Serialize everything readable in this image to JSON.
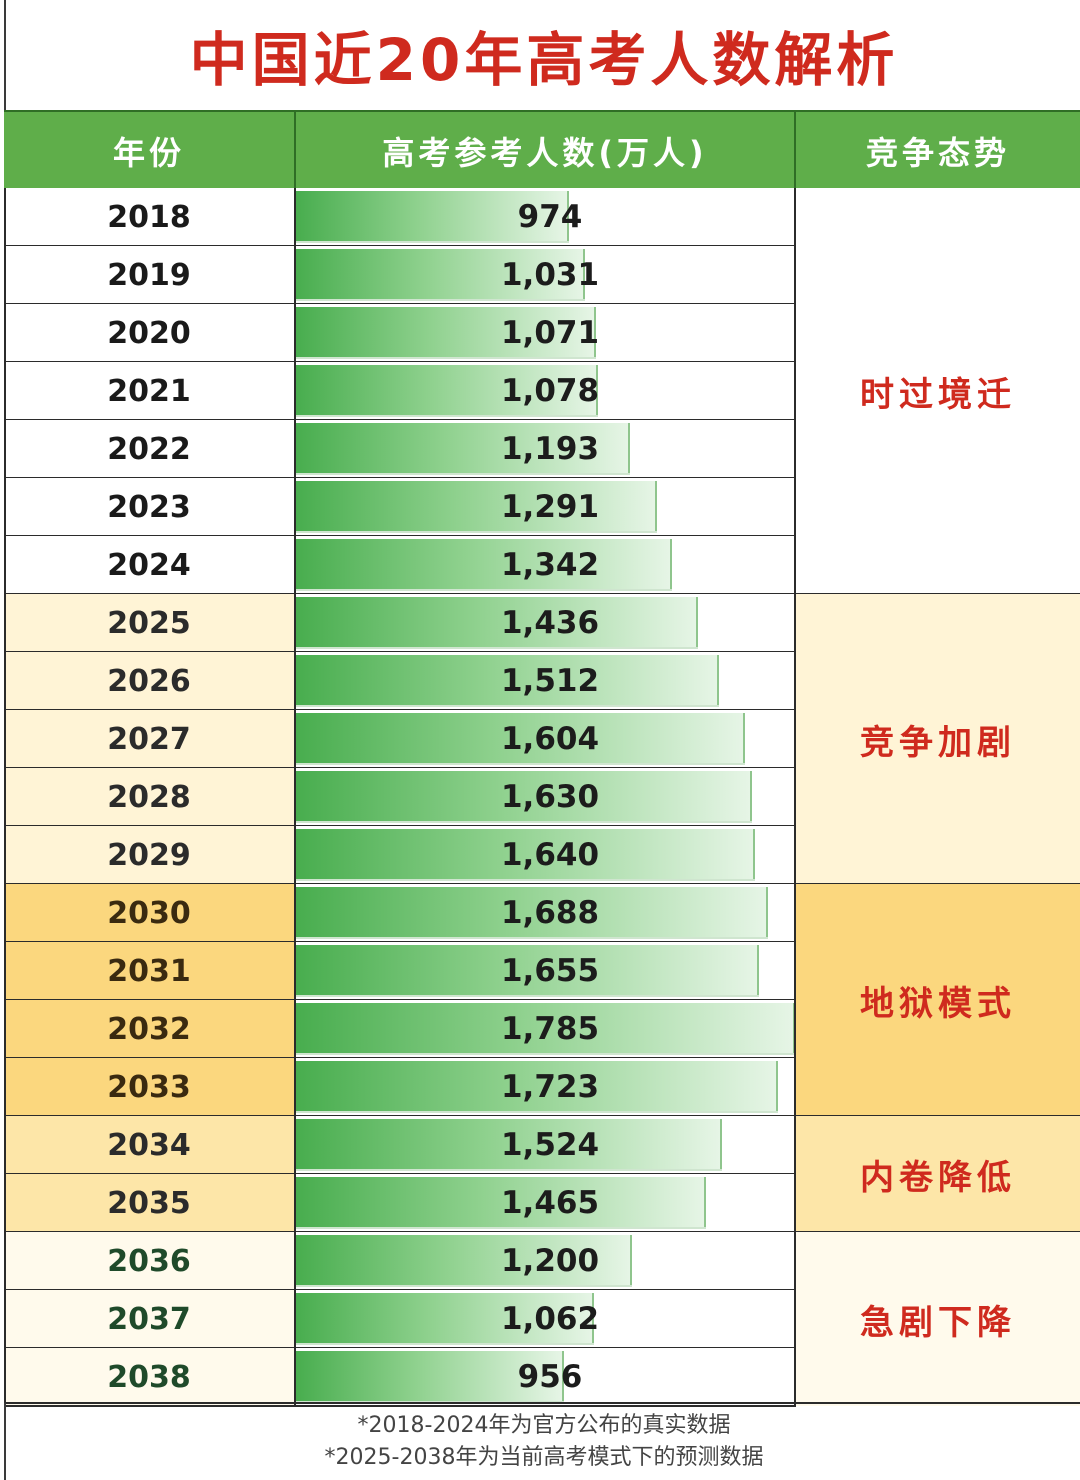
{
  "title": "中国近20年高考人数解析",
  "headers": {
    "year": "年份",
    "count": "高考参考人数(万人)",
    "status": "竞争态势"
  },
  "colors": {
    "header_green": "#5fae4a",
    "title_red": "#cf2a1e",
    "bar_green": "#48ad4e"
  },
  "chart_data": {
    "type": "bar",
    "orientation": "horizontal",
    "title": "中国近20年高考人数解析",
    "ylabel": "高考参考人数(万人)",
    "xlabel": "年份",
    "categories": [
      "2018",
      "2019",
      "2020",
      "2021",
      "2022",
      "2023",
      "2024",
      "2025",
      "2026",
      "2027",
      "2028",
      "2029",
      "2030",
      "2031",
      "2032",
      "2033",
      "2034",
      "2035",
      "2036",
      "2037",
      "2038"
    ],
    "values": [
      974,
      1031,
      1071,
      1078,
      1193,
      1291,
      1342,
      1436,
      1512,
      1604,
      1630,
      1640,
      1688,
      1655,
      1785,
      1723,
      1524,
      1465,
      1200,
      1062,
      956
    ],
    "value_labels": [
      "974",
      "1,031",
      "1,071",
      "1,078",
      "1,193",
      "1,291",
      "1,342",
      "1,436",
      "1,512",
      "1,604",
      "1,630",
      "1,640",
      "1,688",
      "1,655",
      "1,785",
      "1,723",
      "1,524",
      "1,465",
      "1,200",
      "1,062",
      "956"
    ],
    "row_backgrounds": [
      "#ffffff",
      "#ffffff",
      "#ffffff",
      "#ffffff",
      "#ffffff",
      "#ffffff",
      "#ffffff",
      "#fff4d6",
      "#fff4d6",
      "#fff4d6",
      "#fff4d6",
      "#fff4d6",
      "#fbd77e",
      "#fbd77e",
      "#fbd77e",
      "#fbd77e",
      "#fde6a8",
      "#fde6a8",
      "#fffaec",
      "#fffaec",
      "#fffaec"
    ],
    "year_colors": [
      "#1a1a1a",
      "#1a1a1a",
      "#1a1a1a",
      "#1a1a1a",
      "#1a1a1a",
      "#1a1a1a",
      "#1a1a1a",
      "#2b2b2b",
      "#2b2b2b",
      "#2b2b2b",
      "#2b2b2b",
      "#2b2b2b",
      "#3a2a10",
      "#3a2a10",
      "#3a2a10",
      "#3a2a10",
      "#2b2b2b",
      "#2b2b2b",
      "#1f4a2a",
      "#1f4a2a",
      "#1f4a2a"
    ],
    "groups": [
      {
        "label": "时过境迁",
        "start": 0,
        "end": 6,
        "bg": "#ffffff"
      },
      {
        "label": "竞争加剧",
        "start": 7,
        "end": 11,
        "bg": "#fff4d6"
      },
      {
        "label": "地狱模式",
        "start": 12,
        "end": 15,
        "bg": "#fbd77e"
      },
      {
        "label": "内卷降低",
        "start": 16,
        "end": 17,
        "bg": "#fde6a8"
      },
      {
        "label": "急剧下降",
        "start": 18,
        "end": 20,
        "bg": "#fffaec"
      }
    ]
  },
  "footer": {
    "note1": "*2018-2024年为官方公布的真实数据",
    "note2": "*2025-2038年为当前高考模式下的预测数据"
  }
}
